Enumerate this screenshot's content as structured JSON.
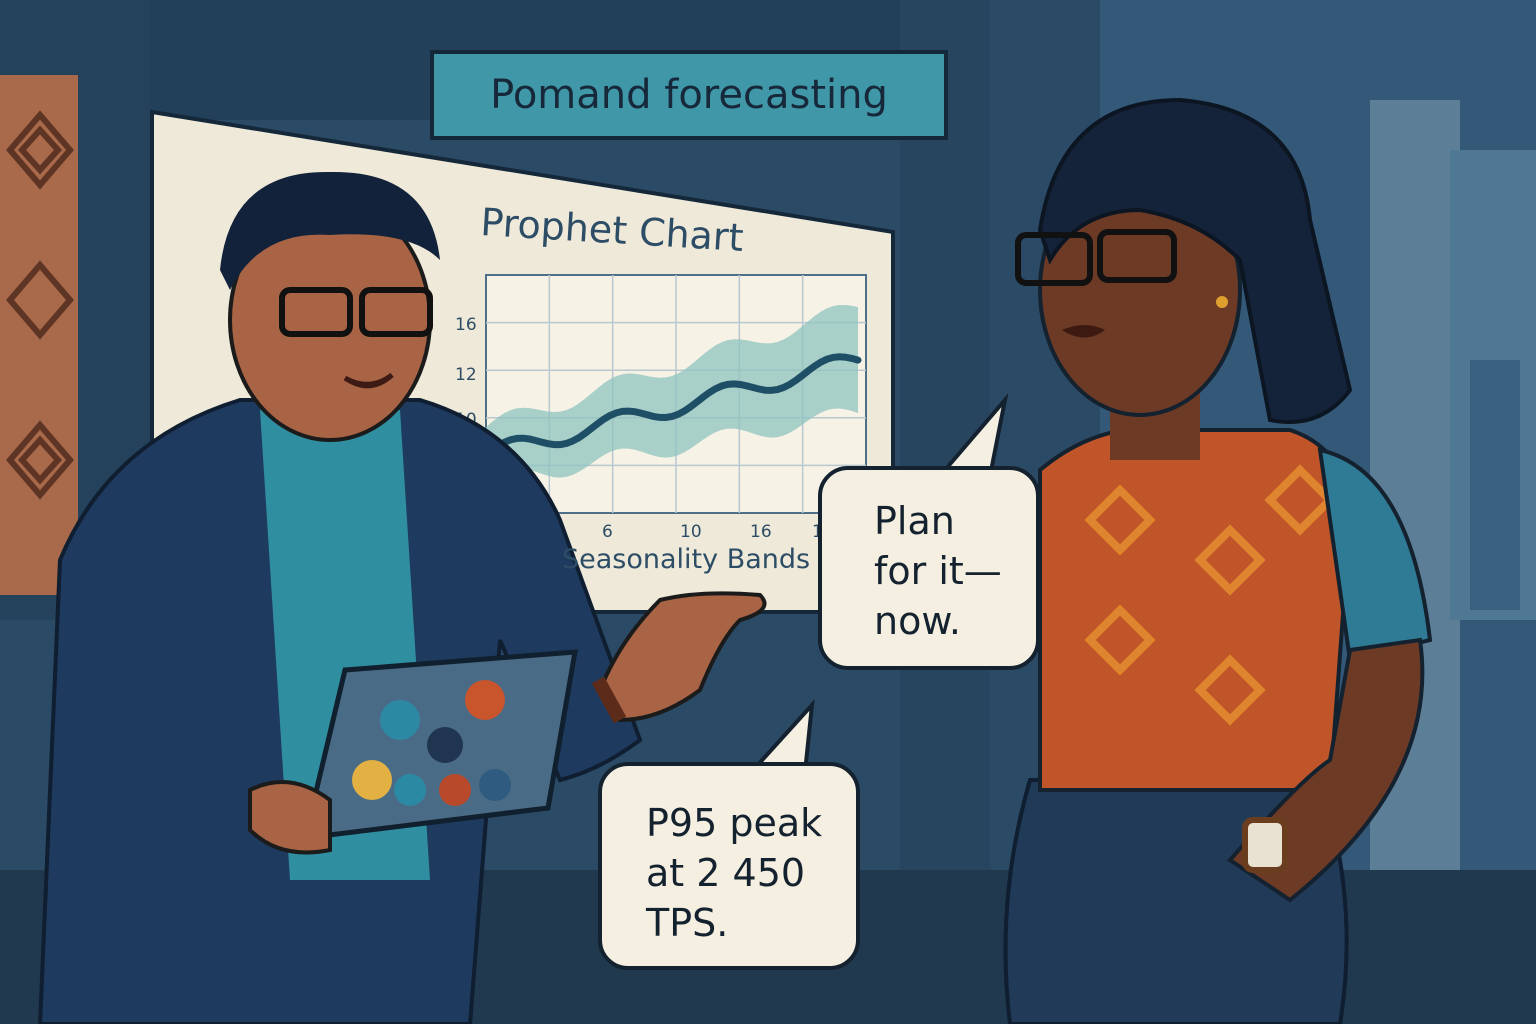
{
  "sign": {
    "text": "Pomand forecasting"
  },
  "board": {
    "title": "Prophet Chart",
    "subtitle": "Seasonality Bands",
    "y_ticks": [
      "16",
      "12",
      "10"
    ],
    "x_ticks": [
      "6",
      "6",
      "10",
      "16",
      "16"
    ]
  },
  "bubbles": {
    "woman": [
      "Plan",
      "for it—",
      "now."
    ],
    "man": [
      "P95 peak",
      "at 2 450",
      "TPS."
    ]
  },
  "colors": {
    "background": "#2b4a66",
    "sign": "#3f97a8",
    "board": "#efe9d9",
    "band": "#8fc3bf",
    "forecast_line": "#1f4f66",
    "bubble": "#f5efe1"
  }
}
